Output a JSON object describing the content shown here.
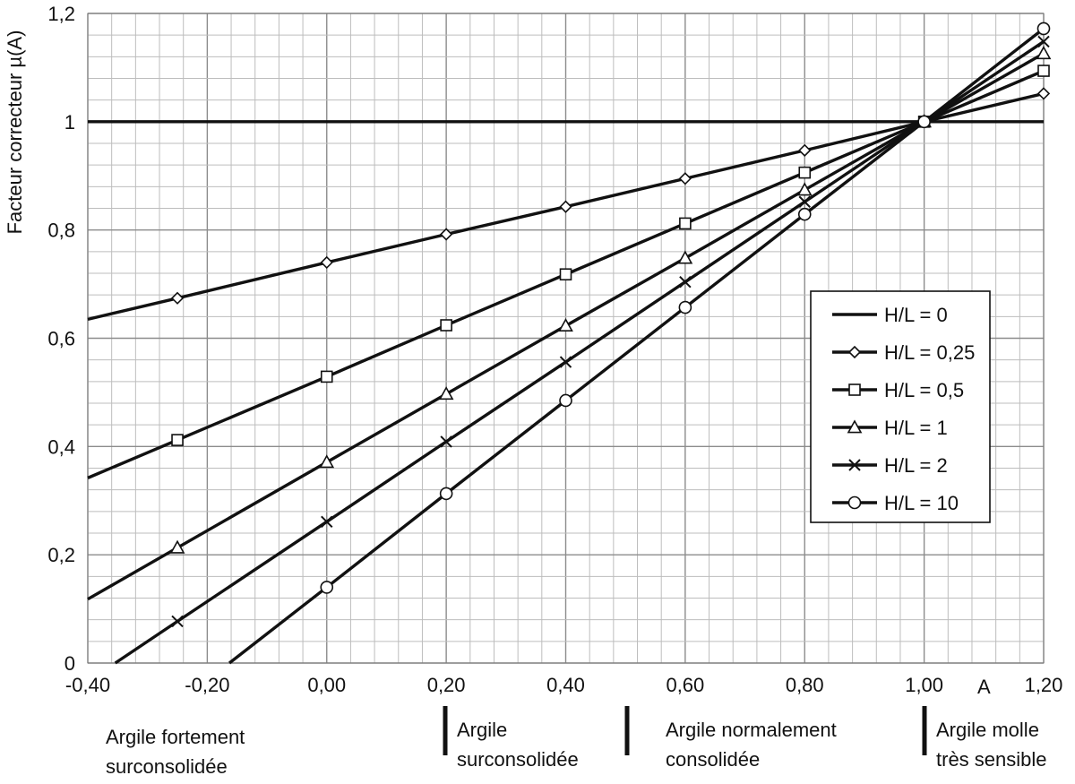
{
  "chart_data": {
    "type": "line",
    "title": "",
    "xlabel": "A",
    "ylabel": "Facteur correcteur µ(A)",
    "xlim": [
      -0.4,
      1.2
    ],
    "ylim": [
      0,
      1.2
    ],
    "x_ticks": [
      "-0,40",
      "-0,20",
      "0,00",
      "0,20",
      "0,40",
      "0,60",
      "0,80",
      "1,00",
      "1,20"
    ],
    "y_ticks": [
      "0",
      "0,2",
      "0,4",
      "0,6",
      "0,8",
      "1",
      "1,2"
    ],
    "grid": true,
    "minor_grid": true,
    "legend_position": "right",
    "series": [
      {
        "name": "H/L = 0",
        "marker": "none",
        "x": [
          -0.4,
          1.2
        ],
        "y": [
          1.0,
          1.0
        ]
      },
      {
        "name": "H/L = 0,25",
        "marker": "diamond",
        "x": [
          -0.4,
          -0.25,
          0,
          0.2,
          0.4,
          0.6,
          0.8,
          1.0,
          1.2
        ],
        "y": [
          0.635,
          0.674,
          0.74,
          0.792,
          0.843,
          0.895,
          0.947,
          1.0,
          1.052
        ]
      },
      {
        "name": "H/L = 0,5",
        "marker": "square",
        "x": [
          -0.4,
          -0.25,
          0,
          0.2,
          0.4,
          0.6,
          0.8,
          1.0,
          1.2
        ],
        "y": [
          0.342,
          0.412,
          0.529,
          0.624,
          0.718,
          0.812,
          0.906,
          1.0,
          1.094
        ]
      },
      {
        "name": "H/L = 1",
        "marker": "triangle",
        "x": [
          -0.4,
          -0.25,
          0,
          0.2,
          0.4,
          0.6,
          0.8,
          1.0,
          1.2
        ],
        "y": [
          0.118,
          0.213,
          0.371,
          0.497,
          0.623,
          0.748,
          0.874,
          1.0,
          1.126
        ]
      },
      {
        "name": "H/L = 2",
        "marker": "cross",
        "x": [
          -0.354,
          -0.25,
          0,
          0.2,
          0.4,
          0.6,
          0.8,
          1.0,
          1.2
        ],
        "y": [
          0.0,
          0.077,
          0.261,
          0.409,
          0.556,
          0.704,
          0.852,
          1.0,
          1.148
        ]
      },
      {
        "name": "H/L = 10",
        "marker": "circle",
        "x": [
          -0.163,
          0,
          0.2,
          0.4,
          0.6,
          0.8,
          1.0,
          1.2
        ],
        "y": [
          0.0,
          0.14,
          0.313,
          0.485,
          0.657,
          0.829,
          1.0,
          1.172
        ]
      }
    ],
    "annotations": [
      {
        "lines": [
          "Argile fortement",
          "surconsolidée"
        ]
      },
      {
        "lines": [
          "Argile",
          "surconsolidée"
        ]
      },
      {
        "lines": [
          "Argile normalement",
          "consolidée"
        ]
      },
      {
        "lines": [
          "Argile molle",
          "très sensible"
        ]
      }
    ]
  }
}
